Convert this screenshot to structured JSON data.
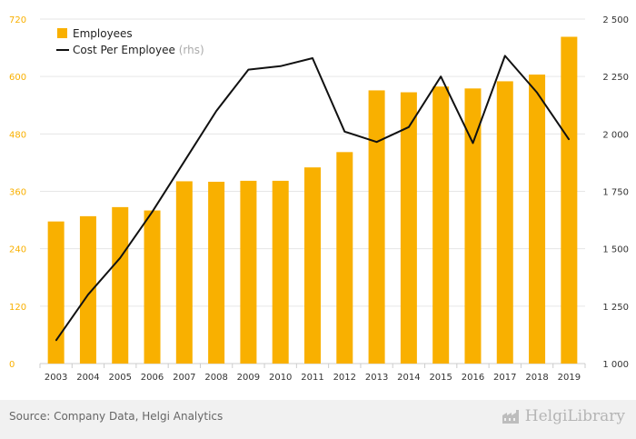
{
  "chart_data": {
    "type": "bar",
    "categories": [
      "2003",
      "2004",
      "2005",
      "2006",
      "2007",
      "2008",
      "2009",
      "2010",
      "2011",
      "2012",
      "2013",
      "2014",
      "2015",
      "2016",
      "2017",
      "2018",
      "2019"
    ],
    "series": [
      {
        "name": "Employees",
        "type": "bar",
        "axis": "left",
        "color": "#f9b000",
        "values": [
          297,
          308,
          327,
          320,
          381,
          380,
          382,
          382,
          410,
          442,
          571,
          567,
          579,
          575,
          590,
          604,
          683
        ]
      },
      {
        "name": "Cost Per Employee",
        "type": "line",
        "axis": "right",
        "color": "#111111",
        "values": [
          1100,
          1300,
          1460,
          1660,
          1880,
          2100,
          2280,
          2295,
          2330,
          2010,
          1965,
          2030,
          2250,
          1960,
          2340,
          2180,
          1975
        ]
      }
    ],
    "legend": [
      {
        "label": "Employees",
        "suffix": ""
      },
      {
        "label": "Cost Per Employee",
        "suffix": "(rhs)"
      }
    ],
    "legend_position": "top-left",
    "y_left": {
      "min": 0,
      "max": 720,
      "ticks": [
        "0",
        "120",
        "240",
        "360",
        "480",
        "600",
        "720"
      ]
    },
    "y_right": {
      "min": 1000,
      "max": 2500,
      "ticks": [
        "1 000",
        "1 250",
        "1 500",
        "1 750",
        "2 000",
        "2 250",
        "2 500"
      ]
    },
    "grid": true,
    "title": "",
    "xlabel": "",
    "ylabel": ""
  },
  "footer": {
    "source": "Source: Company Data, Helgi Analytics",
    "logo_text": "HelgiLibrary"
  }
}
